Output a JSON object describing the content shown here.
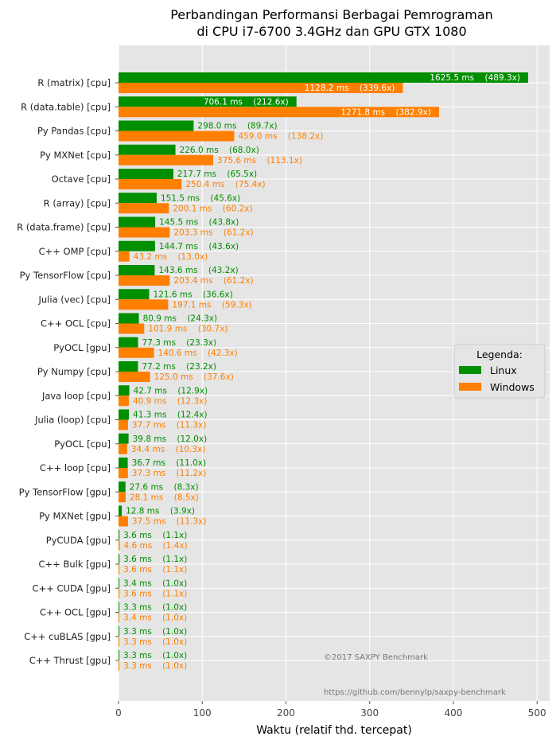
{
  "chart_data": {
    "type": "bar",
    "orientation": "horizontal",
    "title": "Perbandingan Performansi Berbagai Pemrograman\ndi CPU i7-6700 3.4GHz dan GPU GTX 1080",
    "title_lines": [
      "Perbandingan Performansi Berbagai Pemrograman",
      "di CPU i7-6700 3.4GHz dan GPU GTX 1080"
    ],
    "xlabel": "Waktu (relatif thd. tercepat)",
    "ylabel": "",
    "xlim": [
      0,
      515
    ],
    "xticks": [
      0,
      100,
      200,
      300,
      400,
      500
    ],
    "grid": true,
    "legend": {
      "title": "Legenda:",
      "position": "center-right"
    },
    "categories": [
      "R (matrix) [cpu]",
      "R (data.table) [cpu]",
      "Py Pandas [cpu]",
      "Py MXNet [cpu]",
      "Octave [cpu]",
      "R (array) [cpu]",
      "R (data.frame) [cpu]",
      "C++ OMP [cpu]",
      "Py TensorFlow [cpu]",
      "Julia (vec) [cpu]",
      "C++ OCL [cpu]",
      "PyOCL [gpu]",
      "Py Numpy [cpu]",
      "Java loop [cpu]",
      "Julia (loop) [cpu]",
      "PyOCL [cpu]",
      "C++ loop [cpu]",
      "Py TensorFlow [gpu]",
      "Py MXNet [gpu]",
      "PyCUDA [gpu]",
      "C++ Bulk [gpu]",
      "C++ CUDA [gpu]",
      "C++ OCL [gpu]",
      "C++ cuBLAS [gpu]",
      "C++ Thrust [gpu]"
    ],
    "series": [
      {
        "name": "Linux",
        "color": "#008f00",
        "values": [
          489.3,
          212.6,
          89.7,
          68.0,
          65.5,
          45.6,
          43.8,
          43.6,
          43.2,
          36.6,
          24.3,
          23.3,
          23.2,
          12.9,
          12.4,
          12.0,
          11.0,
          8.3,
          3.9,
          1.1,
          1.1,
          1.0,
          1.0,
          1.0,
          1.0
        ],
        "labels": [
          "1625.5 ms    (489.3x)",
          "706.1 ms    (212.6x)",
          "298.0 ms    (89.7x)",
          "226.0 ms    (68.0x)",
          "217.7 ms    (65.5x)",
          "151.5 ms    (45.6x)",
          "145.5 ms    (43.8x)",
          "144.7 ms    (43.6x)",
          "143.6 ms    (43.2x)",
          "121.6 ms    (36.6x)",
          "80.9 ms    (24.3x)",
          "77.3 ms    (23.3x)",
          "77.2 ms    (23.2x)",
          "42.7 ms    (12.9x)",
          "41.3 ms    (12.4x)",
          "39.8 ms    (12.0x)",
          "36.7 ms    (11.0x)",
          "27.6 ms    (8.3x)",
          "12.8 ms    (3.9x)",
          "3.6 ms    (1.1x)",
          "3.6 ms    (1.1x)",
          "3.4 ms    (1.0x)",
          "3.3 ms    (1.0x)",
          "3.3 ms    (1.0x)",
          "3.3 ms    (1.0x)"
        ]
      },
      {
        "name": "Windows",
        "color": "#ff7f00",
        "values": [
          339.6,
          382.9,
          138.2,
          113.1,
          75.4,
          60.2,
          61.2,
          13.0,
          61.2,
          59.3,
          30.7,
          42.3,
          37.6,
          12.3,
          11.3,
          10.3,
          11.2,
          8.5,
          11.3,
          1.4,
          1.1,
          1.1,
          1.0,
          1.0,
          1.0
        ],
        "labels": [
          "1128.2 ms    (339.6x)",
          "1271.8 ms    (382.9x)",
          "459.0 ms    (138.2x)",
          "375.6 ms    (113.1x)",
          "250.4 ms    (75.4x)",
          "200.1 ms    (60.2x)",
          "203.3 ms    (61.2x)",
          "43.2 ms    (13.0x)",
          "203.4 ms    (61.2x)",
          "197.1 ms    (59.3x)",
          "101.9 ms    (30.7x)",
          "140.6 ms    (42.3x)",
          "125.0 ms    (37.6x)",
          "40.9 ms    (12.3x)",
          "37.7 ms    (11.3x)",
          "34.4 ms    (10.3x)",
          "37.3 ms    (11.2x)",
          "28.1 ms    (8.5x)",
          "37.5 ms    (11.3x)",
          "4.6 ms    (1.4x)",
          "3.6 ms    (1.1x)",
          "3.6 ms    (1.1x)",
          "3.4 ms    (1.0x)",
          "3.3 ms    (1.0x)",
          "3.3 ms    (1.0x)"
        ]
      }
    ],
    "annotations": {
      "copyright": "©2017 SAXPY Benchmark",
      "url": "https://github.com/bennylp/saxpy-benchmark"
    }
  }
}
